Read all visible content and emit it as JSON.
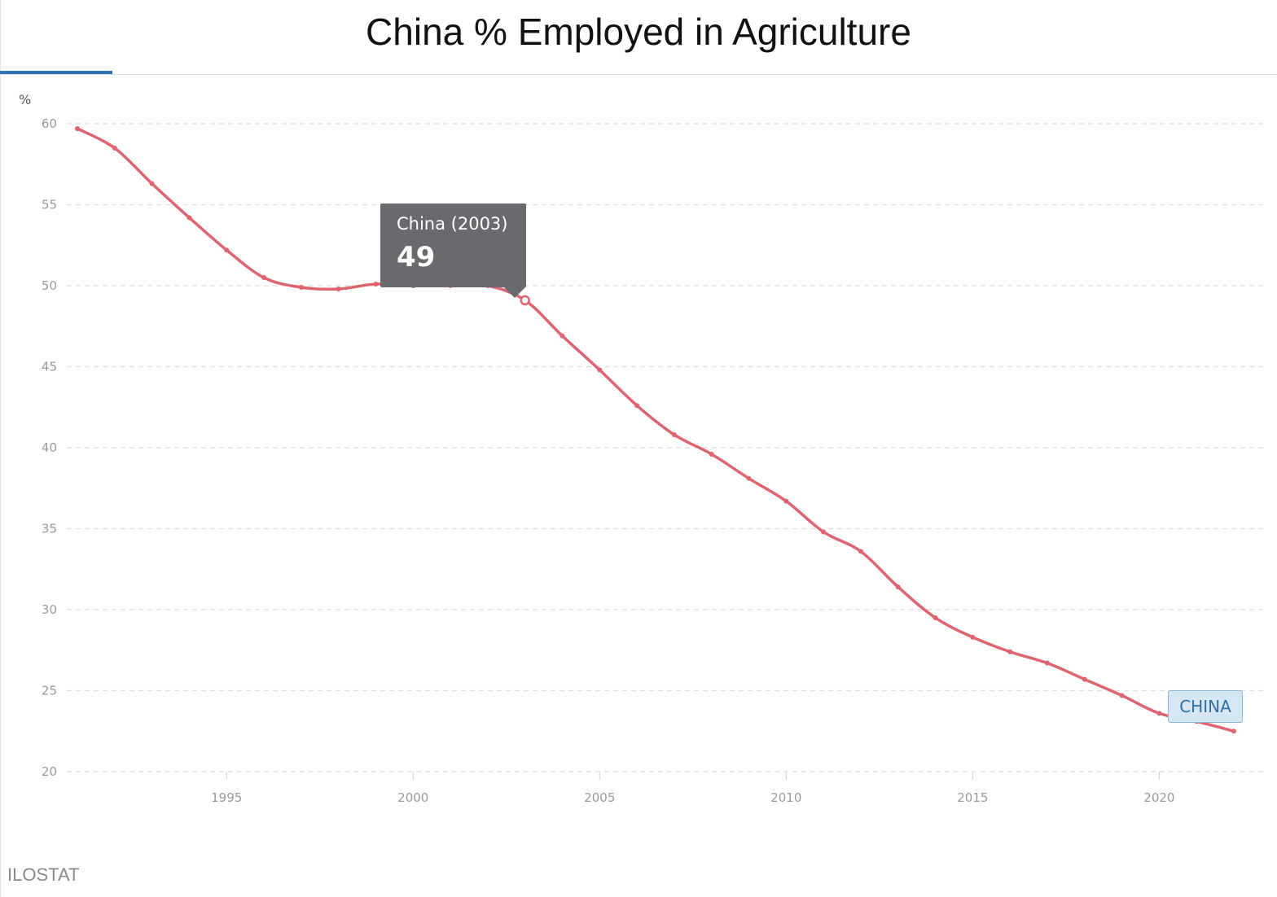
{
  "title": "China % Employed in Agriculture",
  "unit_label": "%",
  "source": "ILOSTAT",
  "tooltip": {
    "label": "China (2003)",
    "value": "49"
  },
  "end_label": "CHINA",
  "colors": {
    "line": "#de6470",
    "tab_accent": "#2f73b8",
    "tooltip_bg": "#696a6e",
    "end_label_bg": "#d6e6f4"
  },
  "chart_data": {
    "type": "line",
    "title": "China % Employed in Agriculture",
    "ylabel": "%",
    "xlabel": "",
    "x_ticks": [
      1995,
      2000,
      2005,
      2010,
      2015,
      2020
    ],
    "y_ticks": [
      20,
      25,
      30,
      35,
      40,
      45,
      50,
      55,
      60
    ],
    "xlim": [
      1991,
      2022
    ],
    "ylim": [
      20,
      60
    ],
    "grid": true,
    "highlighted_point": {
      "x": 2003,
      "y": 49
    },
    "series": [
      {
        "name": "CHINA",
        "x": [
          1991,
          1992,
          1993,
          1994,
          1995,
          1996,
          1997,
          1998,
          1999,
          2000,
          2001,
          2002,
          2003,
          2004,
          2005,
          2006,
          2007,
          2008,
          2009,
          2010,
          2011,
          2012,
          2013,
          2014,
          2015,
          2016,
          2017,
          2018,
          2019,
          2020,
          2021,
          2022
        ],
        "values": [
          59.7,
          58.5,
          56.3,
          54.2,
          52.2,
          50.5,
          49.9,
          49.8,
          50.1,
          50.0,
          50.0,
          50.0,
          49.1,
          46.9,
          44.8,
          42.6,
          40.8,
          39.6,
          38.1,
          36.7,
          34.8,
          33.6,
          31.4,
          29.5,
          28.3,
          27.4,
          26.7,
          25.7,
          24.7,
          23.6,
          23.1,
          22.5
        ]
      }
    ]
  }
}
